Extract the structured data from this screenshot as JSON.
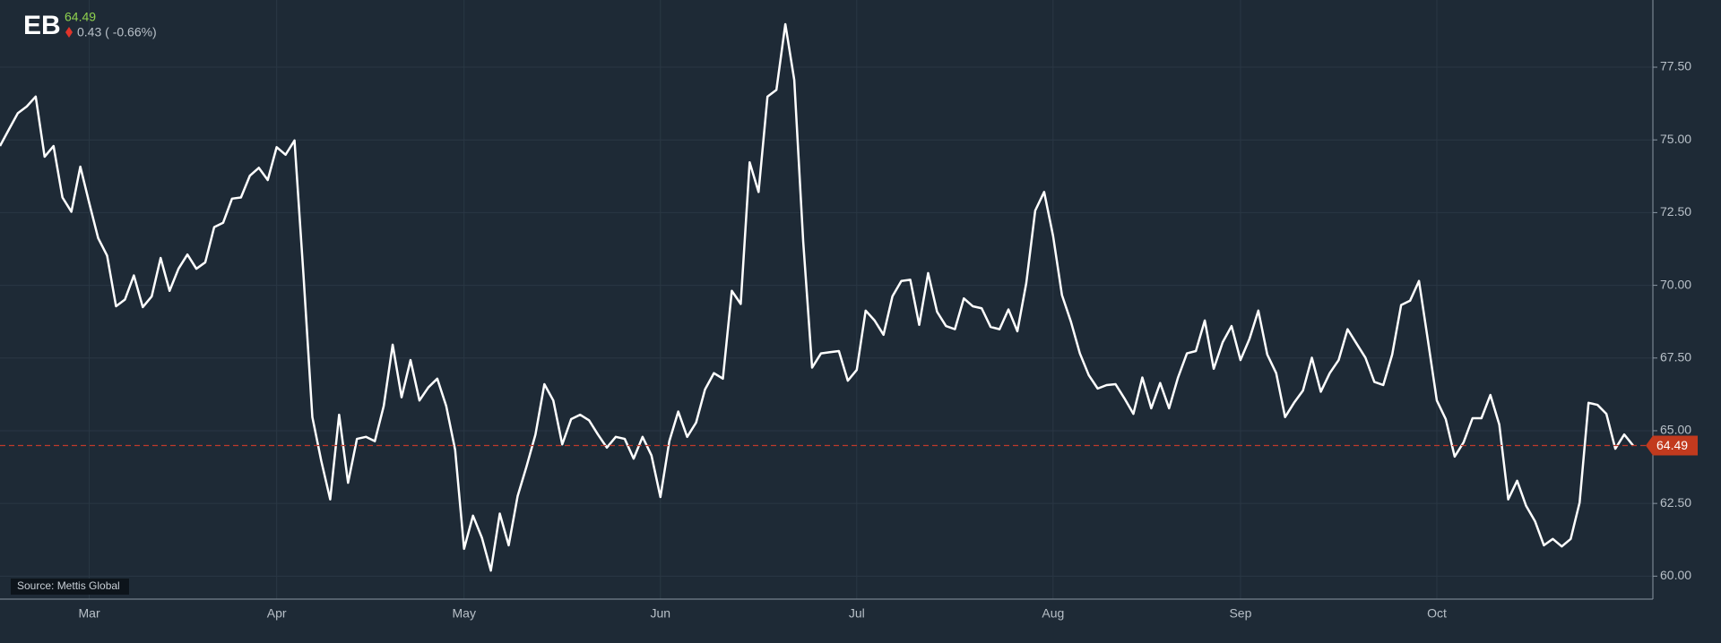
{
  "header": {
    "ticker": "EB",
    "change": "0.43 ( -0.66%)"
  },
  "source": "Source: Mettis Global",
  "chart_data": {
    "type": "line",
    "color": "#ffffff",
    "grid": true,
    "categories": [
      null,
      null,
      null,
      null,
      null,
      null,
      null,
      null,
      null,
      null,
      "Mar",
      null,
      null,
      null,
      null,
      null,
      null,
      null,
      null,
      null,
      null,
      null,
      null,
      null,
      null,
      null,
      null,
      null,
      null,
      null,
      null,
      "Apr",
      null,
      null,
      null,
      null,
      null,
      null,
      null,
      null,
      null,
      null,
      null,
      null,
      null,
      null,
      null,
      null,
      null,
      null,
      null,
      null,
      "May",
      null,
      null,
      null,
      null,
      null,
      null,
      null,
      null,
      null,
      null,
      null,
      null,
      null,
      null,
      null,
      null,
      null,
      null,
      null,
      null,
      null,
      "Jun",
      null,
      null,
      null,
      null,
      null,
      null,
      null,
      null,
      null,
      null,
      null,
      null,
      null,
      null,
      null,
      null,
      null,
      null,
      null,
      null,
      null,
      "Jul",
      null,
      null,
      null,
      null,
      null,
      null,
      null,
      null,
      null,
      null,
      null,
      null,
      null,
      null,
      null,
      null,
      null,
      null,
      null,
      null,
      null,
      "Aug",
      null,
      null,
      null,
      null,
      null,
      null,
      null,
      null,
      null,
      null,
      null,
      null,
      null,
      null,
      null,
      null,
      null,
      null,
      null,
      null,
      "Sep",
      null,
      null,
      null,
      null,
      null,
      null,
      null,
      null,
      null,
      null,
      null,
      null,
      null,
      null,
      null,
      null,
      null,
      null,
      null,
      null,
      null,
      "Oct",
      null,
      null,
      null,
      null,
      null,
      null,
      null,
      null,
      null,
      null,
      null,
      null,
      null,
      null,
      null,
      null,
      null,
      null,
      null,
      null,
      null,
      null
    ],
    "values": [
      74.79,
      75.36,
      75.92,
      76.15,
      76.49,
      74.42,
      74.79,
      73.02,
      72.53,
      74.08,
      72.83,
      71.62,
      71.02,
      69.28,
      69.51,
      70.34,
      69.25,
      69.62,
      70.94,
      69.81,
      70.57,
      71.06,
      70.57,
      70.79,
      72.0,
      72.15,
      72.98,
      73.02,
      73.77,
      74.04,
      73.62,
      74.75,
      74.49,
      74.98,
      70.38,
      65.47,
      63.96,
      62.64,
      65.55,
      63.21,
      64.72,
      64.79,
      64.64,
      65.85,
      67.96,
      66.15,
      67.43,
      66.04,
      66.49,
      66.79,
      65.85,
      64.34,
      60.94,
      62.08,
      61.32,
      60.19,
      62.15,
      61.06,
      62.75,
      63.77,
      64.87,
      66.6,
      66.04,
      64.53,
      65.4,
      65.55,
      65.36,
      64.87,
      64.42,
      64.79,
      64.72,
      64.04,
      64.79,
      64.15,
      62.72,
      64.64,
      65.66,
      64.79,
      65.28,
      66.42,
      66.98,
      66.79,
      69.81,
      69.36,
      74.23,
      73.21,
      76.49,
      76.72,
      78.98,
      77.06,
      71.51,
      67.17,
      67.66,
      67.7,
      67.74,
      66.72,
      67.09,
      69.13,
      68.79,
      68.3,
      69.62,
      70.15,
      70.19,
      68.64,
      70.42,
      69.09,
      68.6,
      68.49,
      69.55,
      69.28,
      69.21,
      68.57,
      68.49,
      69.17,
      68.42,
      70.08,
      72.57,
      73.21,
      71.7,
      69.66,
      68.75,
      67.66,
      66.91,
      66.45,
      66.57,
      66.6,
      66.11,
      65.58,
      66.83,
      65.77,
      66.64,
      65.77,
      66.83,
      67.66,
      67.74,
      68.79,
      67.13,
      68.04,
      68.6,
      67.43,
      68.15,
      69.13,
      67.62,
      66.98,
      65.47,
      65.96,
      66.38,
      67.51,
      66.34,
      66.98,
      67.43,
      68.49,
      68.0,
      67.51,
      66.68,
      66.57,
      67.62,
      69.32,
      69.47,
      70.15,
      68.11,
      66.04,
      65.4,
      64.11,
      64.6,
      65.43,
      65.43,
      66.23,
      65.21,
      62.64,
      63.28,
      62.42,
      61.89,
      61.06,
      61.28,
      61.02,
      61.28,
      62.53,
      65.96,
      65.89,
      65.58,
      64.38,
      64.87,
      64.49
    ],
    "ylim": [
      59.21,
      79.81
    ],
    "yticks": [
      {
        "value": 60,
        "label": "60.00"
      },
      {
        "value": 62.5,
        "label": "62.50"
      },
      {
        "value": 65,
        "label": "65.00"
      },
      {
        "value": 67.5,
        "label": "67.50"
      },
      {
        "value": 70,
        "label": "70.00"
      },
      {
        "value": 72.5,
        "label": "72.50"
      },
      {
        "value": 75,
        "label": "75.00"
      },
      {
        "value": 77.5,
        "label": "77.50"
      }
    ]
  }
}
